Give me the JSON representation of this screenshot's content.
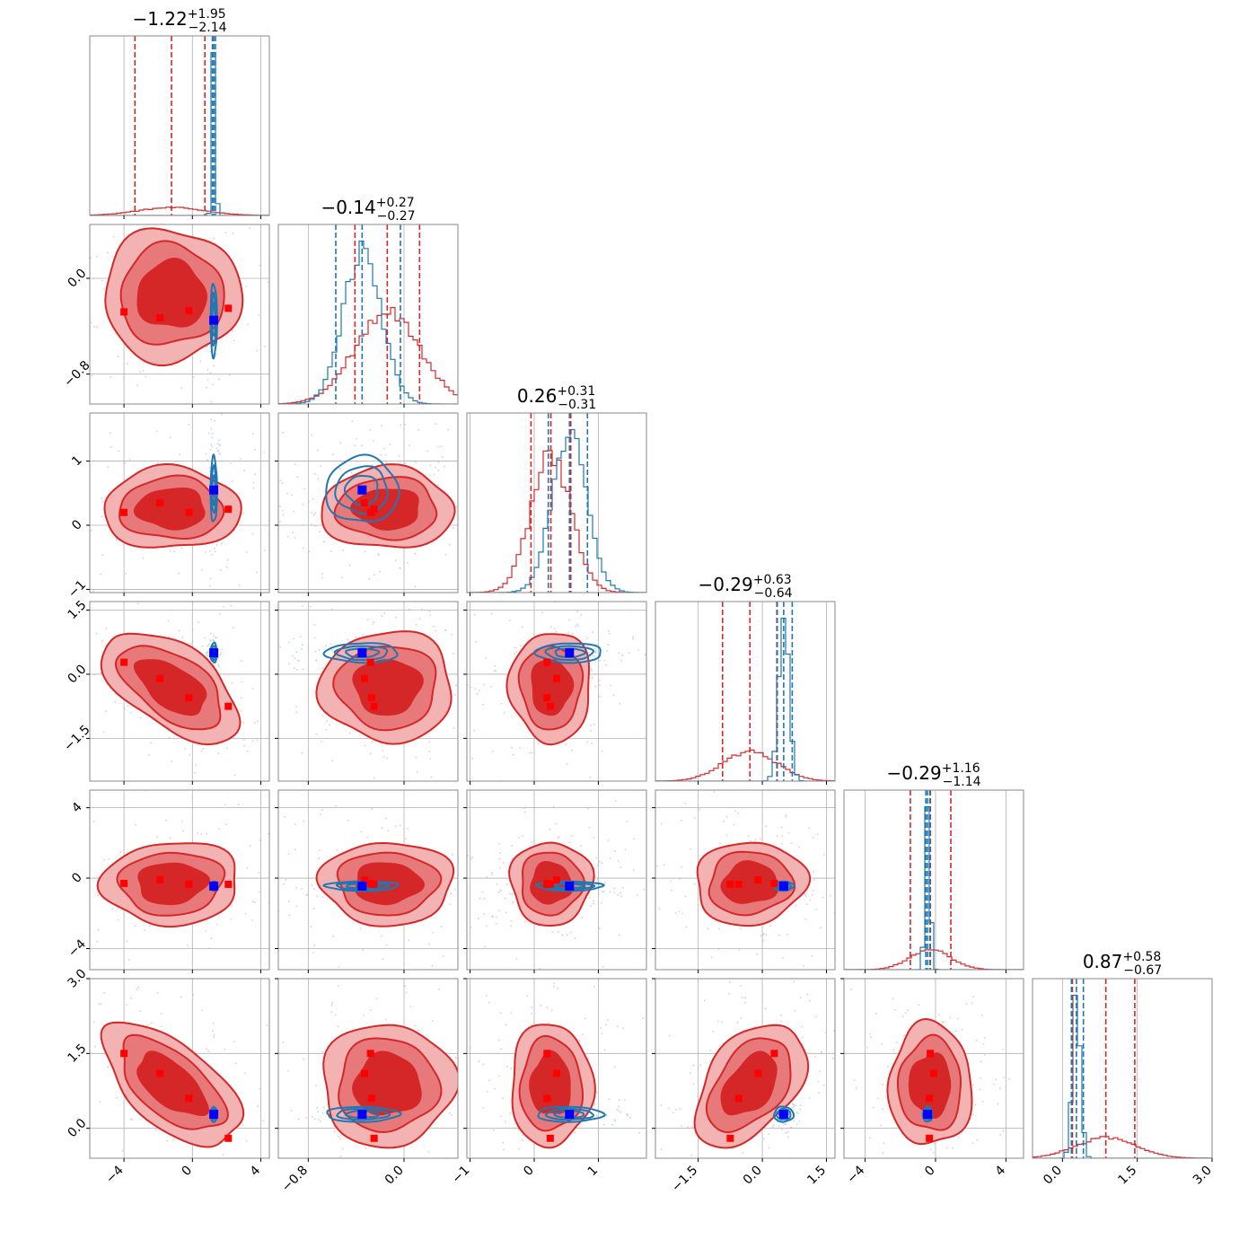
{
  "chart_data": {
    "type": "corner",
    "parameters": [
      {
        "title_value": "−1.22",
        "title_plus": "+1.95",
        "title_minus": "−2.14",
        "range": [
          -6,
          4.5
        ],
        "ticks": [
          -4,
          0,
          4
        ],
        "tick_labels": [
          "−4",
          "0",
          "4"
        ]
      },
      {
        "title_value": "−0.14",
        "title_plus": "+0.27",
        "title_minus": "−0.27",
        "range": [
          -1.05,
          0.45
        ],
        "ticks": [
          -0.8,
          0.0
        ],
        "tick_labels": [
          "−0.8",
          "0.0"
        ]
      },
      {
        "title_value": "0.26",
        "title_plus": "+0.31",
        "title_minus": "−0.31",
        "range": [
          -1.05,
          1.75
        ],
        "ticks": [
          -1,
          0,
          1
        ],
        "tick_labels": [
          "−1",
          "0",
          "1"
        ]
      },
      {
        "title_value": "−0.29",
        "title_plus": "+0.63",
        "title_minus": "−0.64",
        "range": [
          -2.5,
          1.7
        ],
        "ticks": [
          -1.5,
          0.0,
          1.5
        ],
        "tick_labels": [
          "−1.5",
          "0.0",
          "1.5"
        ]
      },
      {
        "title_value": "−0.29",
        "title_plus": "+1.16",
        "title_minus": "−1.14",
        "range": [
          -5.2,
          5
        ],
        "ticks": [
          -4,
          0,
          4
        ],
        "tick_labels": [
          "−4",
          "0",
          "4"
        ]
      },
      {
        "title_value": "0.87",
        "title_plus": "+0.58",
        "title_minus": "−0.67",
        "range": [
          -0.6,
          3.0
        ],
        "ticks": [
          0.0,
          1.5,
          3.0
        ],
        "tick_labels": [
          "0.0",
          "1.5",
          "3.0"
        ]
      }
    ],
    "red": {
      "color": "#d62728",
      "centers": [
        -1.22,
        -0.14,
        0.26,
        -0.29,
        -0.29,
        0.87
      ],
      "sigmas": [
        1.95,
        0.27,
        0.31,
        0.63,
        1.15,
        0.6
      ],
      "quantiles": [
        [
          -3.36,
          -1.22,
          0.73
        ],
        [
          -0.41,
          -0.14,
          0.13
        ],
        [
          -0.05,
          0.26,
          0.57
        ],
        [
          -0.93,
          -0.29,
          0.34
        ],
        [
          -1.43,
          -0.29,
          0.87
        ],
        [
          0.2,
          0.87,
          1.45
        ]
      ],
      "correlations": [
        [
          1,
          0.0,
          0.0,
          -0.55,
          0.05,
          -0.6
        ],
        [
          0.0,
          1,
          0.0,
          0.0,
          0.0,
          0.0
        ],
        [
          0.0,
          0.0,
          1,
          0.0,
          0.0,
          0.0
        ],
        [
          -0.55,
          0.0,
          0.0,
          1,
          0.05,
          0.45
        ],
        [
          0.05,
          0.0,
          0.0,
          0.05,
          1,
          0.0
        ],
        [
          -0.6,
          0.0,
          0.0,
          0.45,
          0.0,
          1
        ]
      ],
      "markers": [
        {
          "label": "-4",
          "values": [
            -4.0,
            -0.28,
            0.2,
            0.28,
            -0.3,
            1.5
          ]
        },
        {
          "label": "-2",
          "values": [
            -1.9,
            -0.33,
            0.35,
            -0.1,
            -0.1,
            1.1
          ]
        },
        {
          "label": "-0.2",
          "values": [
            -0.2,
            -0.27,
            0.2,
            -0.55,
            -0.35,
            0.6
          ]
        },
        {
          "label": "2.1",
          "values": [
            2.1,
            -0.25,
            0.25,
            -0.75,
            -0.35,
            -0.2
          ]
        }
      ]
    },
    "blue": {
      "color": "#1f77b4",
      "centers": [
        1.25,
        -0.35,
        0.55,
        0.5,
        -0.45,
        0.28
      ],
      "sigmas": [
        0.1,
        0.16,
        0.27,
        0.12,
        0.14,
        0.08
      ],
      "quantiles": [
        [
          1.17,
          1.25,
          1.35
        ],
        [
          -0.57,
          -0.35,
          -0.03
        ],
        [
          0.22,
          0.55,
          0.83
        ],
        [
          0.35,
          0.5,
          0.7
        ],
        [
          -0.55,
          -0.45,
          -0.32
        ],
        [
          0.18,
          0.28,
          0.42
        ]
      ],
      "marker_color": "#0000ff"
    }
  }
}
